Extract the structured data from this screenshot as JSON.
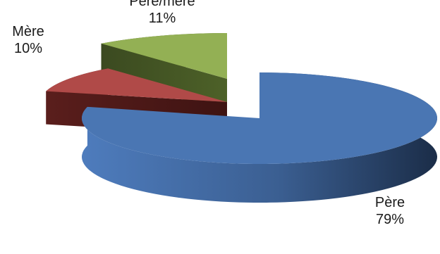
{
  "chart_data": {
    "type": "pie",
    "style": "3d-exploded",
    "categories": [
      "Père",
      "Mère",
      "Père/mère"
    ],
    "values": [
      79,
      10,
      11
    ],
    "labels": [
      {
        "category": "Père",
        "value_label": "79%"
      },
      {
        "category": "Mère",
        "value_label": "10%"
      },
      {
        "category": "Père/mère",
        "value_label": "11%"
      }
    ],
    "colors": {
      "Père": "#4a76b3",
      "Mère": "#b04a48",
      "Père/mère": "#93b054"
    },
    "legend": "none",
    "title": ""
  }
}
